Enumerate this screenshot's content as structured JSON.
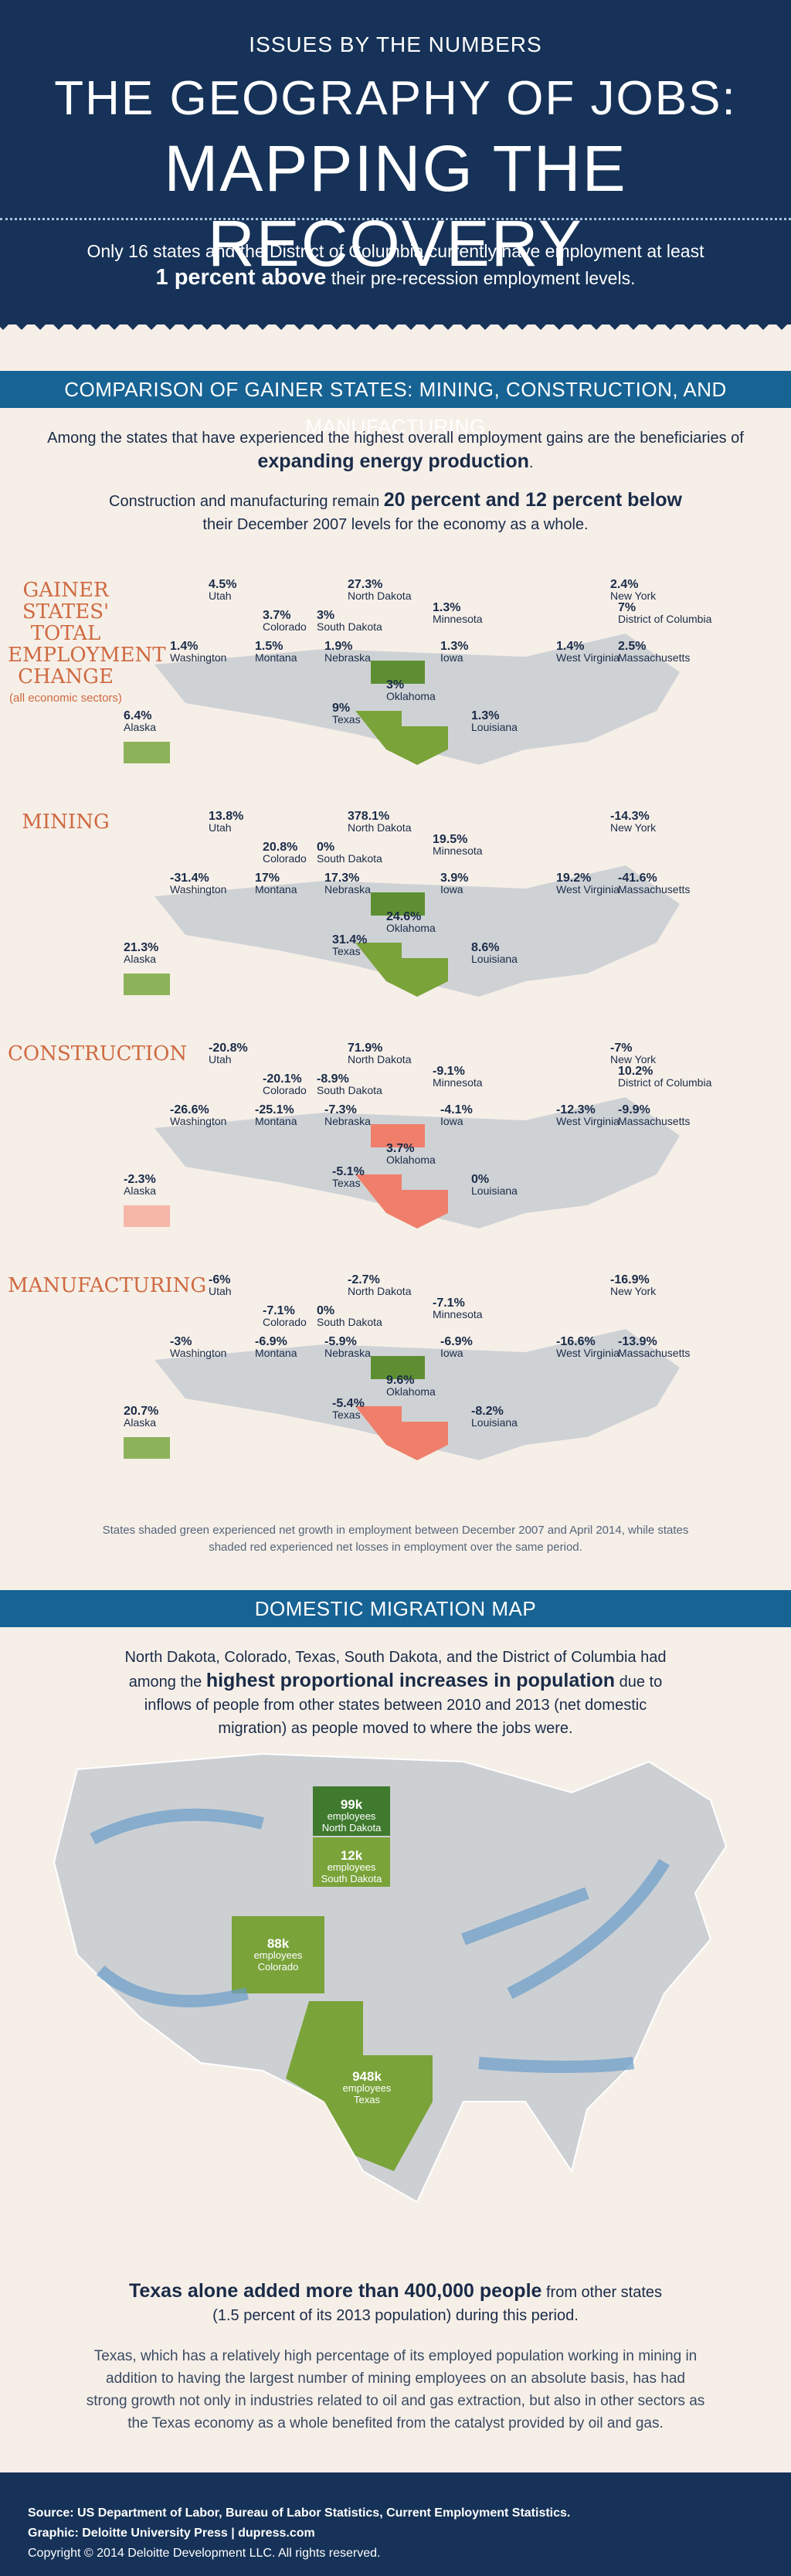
{
  "header": {
    "kicker": "ISSUES BY THE NUMBERS",
    "title_line1": "The Geography of Jobs:",
    "title_line2": "Mapping the Recovery",
    "intro_pre": "Only 16 states and the District of Columbia currently have employment at least",
    "intro_bold": "1 percent above",
    "intro_post": "their pre-recession employment levels."
  },
  "comparison": {
    "band": "Comparison of Gainer States: Mining, Construction, and Manufacturing",
    "p1_pre": "Among the states that have experienced the highest overall employment gains are the beneficiaries of",
    "p1_bold": "expanding energy production",
    "p1_post": ".",
    "p2_pre": "Construction and manufacturing remain",
    "p2_bold": "20 percent and 12 percent below",
    "p2_post": "their December 2007 levels for the economy as a whole.",
    "note": "States shaded green experienced net growth in employment between December 2007 and April 2014, while states shaded red experienced net losses in employment over the same period."
  },
  "sections": [
    {
      "label": "Gainer States' Total Employment Change",
      "sub": "(all economic sectors)",
      "states": [
        [
          "Utah",
          "4.5%"
        ],
        [
          "Colorado",
          "3.7%"
        ],
        [
          "North Dakota",
          "27.3%"
        ],
        [
          "South Dakota",
          "3%"
        ],
        [
          "Minnesota",
          "1.3%"
        ],
        [
          "New York",
          "2.4%"
        ],
        [
          "District of Columbia",
          "7%"
        ],
        [
          "Washington",
          "1.4%"
        ],
        [
          "Montana",
          "1.5%"
        ],
        [
          "Nebraska",
          "1.9%"
        ],
        [
          "Iowa",
          "1.3%"
        ],
        [
          "West Virginia",
          "1.4%"
        ],
        [
          "Massachusetts",
          "2.5%"
        ],
        [
          "Alaska",
          "6.4%"
        ],
        [
          "Oklahoma",
          "3%"
        ],
        [
          "Texas",
          "9%"
        ],
        [
          "Louisiana",
          "1.3%"
        ]
      ]
    },
    {
      "label": "Mining",
      "sub": "",
      "states": [
        [
          "Utah",
          "13.8%"
        ],
        [
          "Colorado",
          "20.8%"
        ],
        [
          "North Dakota",
          "378.1%"
        ],
        [
          "South Dakota",
          "0%"
        ],
        [
          "Minnesota",
          "19.5%"
        ],
        [
          "New York",
          "-14.3%"
        ],
        [
          "Washington",
          "-31.4%"
        ],
        [
          "Montana",
          "17%"
        ],
        [
          "Nebraska",
          "17.3%"
        ],
        [
          "Iowa",
          "3.9%"
        ],
        [
          "West Virginia",
          "19.2%"
        ],
        [
          "Massachusetts",
          "-41.6%"
        ],
        [
          "Alaska",
          "21.3%"
        ],
        [
          "Oklahoma",
          "24.6%"
        ],
        [
          "Texas",
          "31.4%"
        ],
        [
          "Louisiana",
          "8.6%"
        ]
      ]
    },
    {
      "label": "Construction",
      "sub": "",
      "states": [
        [
          "Utah",
          "-20.8%"
        ],
        [
          "Colorado",
          "-20.1%"
        ],
        [
          "North Dakota",
          "71.9%"
        ],
        [
          "South Dakota",
          "-8.9%"
        ],
        [
          "Minnesota",
          "-9.1%"
        ],
        [
          "New York",
          "-7%"
        ],
        [
          "District of Columbia",
          "10.2%"
        ],
        [
          "Washington",
          "-26.6%"
        ],
        [
          "Montana",
          "-25.1%"
        ],
        [
          "Nebraska",
          "-7.3%"
        ],
        [
          "Iowa",
          "-4.1%"
        ],
        [
          "West Virginia",
          "-12.3%"
        ],
        [
          "Massachusetts",
          "-9.9%"
        ],
        [
          "Alaska",
          "-2.3%"
        ],
        [
          "Oklahoma",
          "3.7%"
        ],
        [
          "Texas",
          "-5.1%"
        ],
        [
          "Louisiana",
          "0%"
        ]
      ]
    },
    {
      "label": "Manufacturing",
      "sub": "",
      "states": [
        [
          "Utah",
          "-6%"
        ],
        [
          "Colorado",
          "-7.1%"
        ],
        [
          "North Dakota",
          "-2.7%"
        ],
        [
          "South Dakota",
          "0%"
        ],
        [
          "Minnesota",
          "-7.1%"
        ],
        [
          "New York",
          "-16.9%"
        ],
        [
          "Washington",
          "-3%"
        ],
        [
          "Montana",
          "-6.9%"
        ],
        [
          "Nebraska",
          "-5.9%"
        ],
        [
          "Iowa",
          "-6.9%"
        ],
        [
          "West Virginia",
          "-16.6%"
        ],
        [
          "Massachusetts",
          "-13.9%"
        ],
        [
          "Alaska",
          "20.7%"
        ],
        [
          "Oklahoma",
          "9.6%"
        ],
        [
          "Texas",
          "-5.4%"
        ],
        [
          "Louisiana",
          "-8.2%"
        ]
      ]
    }
  ],
  "migration": {
    "band": "Domestic Migration Map",
    "p_pre": "North Dakota, Colorado, Texas, South Dakota, and the District of Columbia had among the",
    "p_bold": "highest proportional increases in population",
    "p_post": "due to inflows of people from other states between 2010 and 2013 (net domestic migration) as people moved to where the jobs were.",
    "boxes": [
      {
        "n": "99k",
        "u": "employees",
        "s": "North Dakota"
      },
      {
        "n": "12k",
        "u": "employees",
        "s": "South Dakota"
      },
      {
        "n": "88k",
        "u": "employees",
        "s": "Colorado"
      },
      {
        "n": "948k",
        "u": "employees",
        "s": "Texas"
      }
    ],
    "h_bold": "Texas alone added more than 400,000 people",
    "h_post": "from other states",
    "h_line2": "(1.5 percent of its 2013 population) during this period.",
    "body": "Texas, which has a relatively high percentage of its employed population working in mining in addition to having the largest number of mining employees on an absolute basis, has had strong growth not only in industries related to oil and gas extraction, but also in other sectors as the Texas economy as a whole benefited from the catalyst provided by oil and gas."
  },
  "footer": {
    "source": "Source: US Department of Labor, Bureau of Labor Statistics, Current Employment Statistics.",
    "graphic": "Graphic: Deloitte University Press | dupress.com",
    "copyright": "Copyright © 2014 Deloitte Development LLC. All rights reserved."
  },
  "colors": {
    "navy": "#163258",
    "band": "#176394",
    "green": "#7aa33a",
    "lightgreen": "#b7cf8c",
    "red": "#ef7f6a",
    "pink": "#f6b7a8",
    "accent": "#cf6a41"
  }
}
